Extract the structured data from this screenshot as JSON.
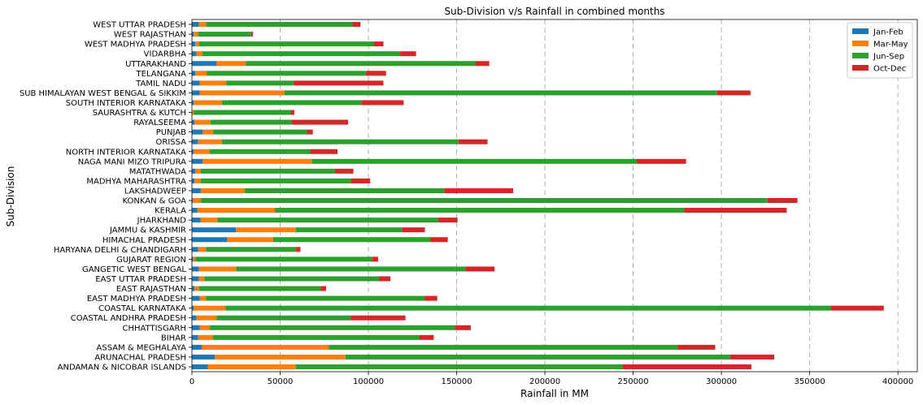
{
  "chart_data": {
    "type": "bar",
    "orientation": "horizontal",
    "stacked": true,
    "title": "Sub-Division v/s Rainfall in combined months",
    "xlabel": "Rainfall in MM",
    "ylabel": "Sub-Division",
    "xlim": [
      0,
      411000
    ],
    "xticks": [
      0,
      50000,
      100000,
      150000,
      200000,
      250000,
      300000,
      350000,
      400000
    ],
    "xtick_labels": [
      "0",
      "50000",
      "100000",
      "150000",
      "200000",
      "250000",
      "300000",
      "350000",
      "400000"
    ],
    "grid": "vertical dashed",
    "legend_position": "top-right",
    "categories": [
      "ANDAMAN & NICOBAR ISLANDS",
      "ARUNACHAL PRADESH",
      "ASSAM & MEGHALAYA",
      "BIHAR",
      "CHHATTISGARH",
      "COASTAL ANDHRA PRADESH",
      "COASTAL KARNATAKA",
      "EAST MADHYA PRADESH",
      "EAST RAJASTHAN",
      "EAST UTTAR PRADESH",
      "GANGETIC WEST BENGAL",
      "GUJARAT REGION",
      "HARYANA DELHI & CHANDIGARH",
      "HIMACHAL PRADESH",
      "JAMMU & KASHMIR",
      "JHARKHAND",
      "KERALA",
      "KONKAN & GOA",
      "LAKSHADWEEP",
      "MADHYA MAHARASHTRA",
      "MATATHWADA",
      "NAGA MANI MIZO TRIPURA",
      "NORTH INTERIOR KARNATAKA",
      "ORISSA",
      "PUNJAB",
      "RAYALSEEMA",
      "SAURASHTRA & KUTCH",
      "SOUTH INTERIOR KARNATAKA",
      "SUB HIMALAYAN WEST BENGAL & SIKKIM",
      "TAMIL NADU",
      "TELANGANA",
      "UTTARAKHAND",
      "VIDARBHA",
      "WEST MADHYA PRADESH",
      "WEST RAJASTHAN",
      "WEST UTTAR PRADESH"
    ],
    "series": [
      {
        "name": "Jan-Feb",
        "color": "#1f77b4",
        "values": [
          9000,
          13000,
          5500,
          3500,
          4500,
          2500,
          1000,
          4500,
          1500,
          4000,
          4000,
          800,
          3500,
          20000,
          25000,
          5000,
          3000,
          600,
          5000,
          1500,
          2000,
          6000,
          1000,
          3500,
          6000,
          1500,
          300,
          1000,
          4500,
          4500,
          2000,
          14000,
          2500,
          2000,
          1000,
          4000
        ]
      },
      {
        "name": "Mar-May",
        "color": "#ff7f0e",
        "values": [
          50000,
          74000,
          72000,
          8500,
          5500,
          11500,
          18000,
          3500,
          2500,
          3000,
          21000,
          1200,
          4500,
          26000,
          34000,
          9500,
          44000,
          4500,
          25000,
          3500,
          3000,
          62000,
          9000,
          13500,
          6000,
          9000,
          700,
          16000,
          48000,
          15000,
          6500,
          16500,
          3500,
          2000,
          2500,
          4000
        ]
      },
      {
        "name": "Jun-Sep",
        "color": "#2ca02c",
        "values": [
          185000,
          218000,
          198000,
          117000,
          139000,
          76000,
          343000,
          124000,
          69000,
          99000,
          130000,
          100000,
          51000,
          89000,
          60000,
          125000,
          232000,
          321000,
          113000,
          85000,
          76000,
          184000,
          57000,
          134000,
          53000,
          46000,
          55000,
          79000,
          245000,
          38000,
          90000,
          130000,
          112000,
          99000,
          30000,
          83000
        ]
      },
      {
        "name": "Oct-Dec",
        "color": "#d62728",
        "values": [
          73000,
          25000,
          21000,
          8000,
          9000,
          31000,
          30000,
          7000,
          3000,
          6500,
          16500,
          3500,
          2500,
          10000,
          13000,
          11000,
          58000,
          17000,
          39000,
          11000,
          10500,
          28000,
          15500,
          16500,
          3500,
          32000,
          2000,
          24000,
          19000,
          51000,
          11500,
          8000,
          9000,
          5500,
          1000,
          4500
        ]
      }
    ]
  }
}
